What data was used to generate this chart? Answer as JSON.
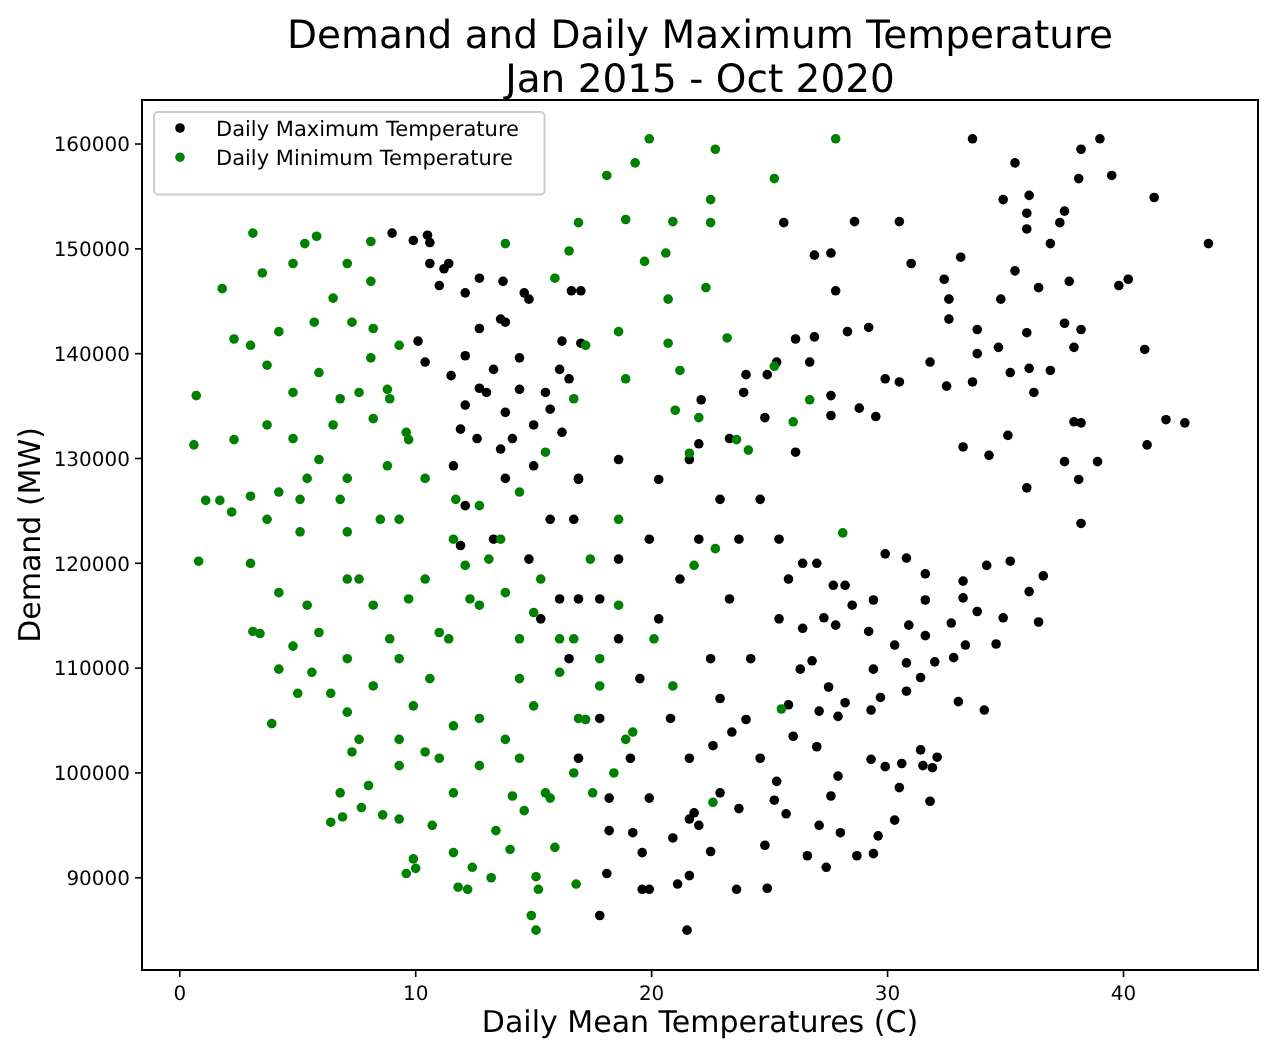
{
  "chart_data": {
    "type": "scatter",
    "title": "Demand and Daily Maximum Temperature\nJan 2015 - Oct 2020",
    "xlabel": "Daily Mean Temperatures (C)",
    "ylabel": "Demand (MW)",
    "xlim": [
      -1.6,
      45.7
    ],
    "ylim": [
      81200,
      164200
    ],
    "xticks": [
      0,
      10,
      20,
      30,
      40
    ],
    "yticks": [
      90000,
      100000,
      110000,
      120000,
      130000,
      140000,
      150000,
      160000
    ],
    "legend": "top left",
    "marker": "circle",
    "series": [
      {
        "name": "Daily Maximum Temperature",
        "color": "#000000",
        "x": [
          33.6,
          39.0,
          38.2,
          35.4,
          39.5,
          38.1,
          34.9,
          36.0,
          35.9,
          41.3,
          37.5,
          37.3,
          35.9,
          43.6,
          36.9,
          25.6,
          28.6,
          30.5,
          26.9,
          27.6,
          31.0,
          33.1,
          32.4,
          35.4,
          36.4,
          37.7,
          39.8,
          40.2,
          27.8,
          32.6,
          34.8,
          32.6,
          37.5,
          38.2,
          35.9,
          33.8,
          28.3,
          29.2,
          26.1,
          26.9,
          40.9,
          37.9,
          33.8,
          34.7,
          31.8,
          29.9,
          30.5,
          36.9,
          36.0,
          35.2,
          32.5,
          33.6,
          36.2,
          41.8,
          42.6,
          37.9,
          38.2,
          41.0,
          38.9,
          37.5,
          38.1,
          38.2,
          35.9,
          35.1,
          34.3,
          33.2,
          29.5,
          28.8,
          27.6,
          26.7,
          25.3,
          24.9,
          23.9,
          24.0,
          24.8,
          27.6,
          26.1,
          23.3,
          22.0,
          22.1,
          36.6,
          36.0,
          36.4,
          34.9,
          34.1,
          33.0,
          34.6,
          32.1,
          31.8,
          30.3,
          29.4,
          28.7,
          27.4,
          24.9,
          23.6,
          21.5,
          17.8,
          19.6,
          19.9,
          21.1,
          21.6,
          18.1,
          30.5,
          29.6,
          28.0,
          26.6,
          24.8,
          22.5,
          22.0,
          31.9,
          31.5,
          30.6,
          29.9,
          29.3,
          31.4,
          30.8,
          31.4,
          32.0,
          32.8,
          33.3,
          33.8,
          33.2,
          32.7,
          31.6,
          30.8,
          30.3,
          29.2,
          28.5,
          29.4,
          31.6,
          30.9,
          29.4,
          29.3,
          29.7,
          27.9,
          28.2,
          27.1,
          27.5,
          27.0,
          27.9,
          27.6,
          27.1,
          25.7,
          25.2,
          25.3,
          26.0,
          25.8,
          26.3,
          26.8,
          26.4,
          27.3,
          27.8,
          27.7,
          27.0,
          26.4,
          28.2,
          30.8,
          29.9,
          31.6,
          33.2,
          34.2,
          35.2,
          24.0,
          23.4,
          22.6,
          22.9,
          21.8,
          20.9,
          19.6,
          19.2,
          18.2,
          9.0,
          9.9,
          10.5,
          10.6,
          10.6,
          11.4,
          11.2,
          11.0,
          12.1,
          13.7,
          14.6,
          10.1,
          10.4,
          11.5,
          12.1,
          12.7,
          13.8,
          13.3,
          14.4,
          13.8,
          15.0,
          15.5,
          13.0,
          12.1,
          12.6,
          14.1,
          15.0,
          16.2,
          16.9,
          16.7,
          16.2,
          17.0,
          16.6,
          17.0,
          16.1,
          13.8,
          12.1,
          11.6,
          11.9,
          13.3,
          17.8,
          18.6,
          19.5,
          20.3,
          21.2,
          20.8,
          21.6,
          22.5,
          23.3,
          23.7,
          24.6,
          25.4,
          22.9,
          22.0,
          19.9,
          18.6,
          16.9,
          16.5,
          17.8,
          19.1,
          19.9,
          18.2,
          16.9,
          21.6,
          22.9,
          24.2,
          25.4,
          25.8,
          24.6,
          23.7,
          20.3,
          21.6,
          18.6,
          16.9,
          15.7,
          14.8,
          16.1,
          15.3,
          15.7,
          16.5,
          13.6,
          12.7,
          11.9,
          13.6,
          14.4,
          12.7,
          14.8
        ],
        "values": [
          160500,
          160500,
          159500,
          158200,
          157000,
          156700,
          154700,
          155100,
          153400,
          154900,
          153600,
          152500,
          151900,
          150500,
          150500,
          152500,
          152600,
          152600,
          149400,
          149600,
          148600,
          149200,
          147100,
          147900,
          146300,
          146900,
          146500,
          147100,
          146000,
          145200,
          145200,
          143300,
          142900,
          142300,
          142000,
          142300,
          142100,
          142500,
          141400,
          141600,
          140400,
          140600,
          140000,
          140600,
          139200,
          137600,
          137300,
          138400,
          138600,
          138200,
          136900,
          137300,
          136300,
          133700,
          133400,
          133500,
          133400,
          131300,
          129700,
          129700,
          128000,
          123800,
          127200,
          132200,
          130300,
          131100,
          134000,
          134800,
          136000,
          139200,
          139200,
          138000,
          136300,
          138000,
          133900,
          134100,
          130600,
          131900,
          131400,
          135600,
          118800,
          117300,
          114400,
          114800,
          106000,
          106800,
          112300,
          101500,
          97300,
          95500,
          92300,
          92100,
          91000,
          89000,
          88900,
          85000,
          86400,
          88900,
          88900,
          89400,
          90200,
          90400,
          98600,
          94000,
          94300,
          92100,
          93100,
          92500,
          95000,
          100500,
          100700,
          100900,
          100600,
          101300,
          102200,
          107800,
          109100,
          110600,
          111000,
          112200,
          115400,
          116700,
          114300,
          113100,
          110500,
          112200,
          113500,
          116000,
          116500,
          116500,
          114100,
          109900,
          106000,
          107200,
          105400,
          106700,
          105900,
          108200,
          102500,
          99700,
          97800,
          95000,
          96100,
          97400,
          99200,
          103500,
          106500,
          109900,
          110700,
          113800,
          114800,
          114100,
          117900,
          120000,
          120000,
          117900,
          120500,
          120900,
          119000,
          118300,
          119800,
          120200,
          105100,
          103900,
          102600,
          98100,
          96200,
          93800,
          92400,
          94300,
          94500,
          151500,
          150800,
          151300,
          150600,
          148600,
          148600,
          148100,
          146500,
          145800,
          146900,
          145800,
          141200,
          139200,
          137900,
          139800,
          142400,
          143000,
          138500,
          136600,
          134400,
          133200,
          136300,
          136300,
          135100,
          131900,
          131900,
          129300,
          132500,
          128100,
          124200,
          141200,
          141000,
          146000,
          146000,
          138500,
          128100,
          125500,
          129300,
          121700,
          122300,
          116600,
          112800,
          109000,
          114700,
          118500,
          105200,
          101400,
          110900,
          116600,
          122300,
          126100,
          122300,
          126100,
          122300,
          122300,
          120400,
          116600,
          110900,
          105200,
          101400,
          97600,
          97600,
          101400,
          95600,
          107100,
          110900,
          114700,
          118500,
          101400,
          96600,
          128000,
          129900,
          129900,
          128000,
          124200,
          120400,
          116600,
          114700,
          134700,
          137600,
          143300,
          147200,
          132800,
          130900,
          139600,
          136700,
          145200
        ]
      },
      {
        "name": "Daily Minimum Temperature",
        "color": "#008000",
        "x": [
          3.1,
          1.8,
          0.7,
          0.6,
          2.3,
          1.1,
          1.7,
          2.2,
          3.0,
          3.5,
          4.8,
          5.3,
          5.8,
          8.1,
          8.1,
          7.1,
          13.8,
          19.3,
          18.1,
          18.9,
          16.9,
          16.5,
          15.9,
          2.3,
          3.0,
          3.7,
          4.2,
          5.7,
          6.5,
          7.3,
          8.2,
          9.3,
          8.8,
          7.6,
          5.9,
          4.8,
          3.7,
          4.8,
          6.5,
          8.2,
          9.6,
          10.4,
          8.8,
          7.1,
          5.4,
          4.2,
          3.7,
          5.1,
          7.1,
          9.3,
          11.6,
          12.7,
          14.4,
          15.5,
          16.7,
          17.2,
          18.6,
          18.9,
          19.9,
          22.7,
          27.8,
          25.2,
          22.5,
          22.5,
          20.9,
          20.6,
          19.7,
          22.3,
          20.7,
          23.2,
          20.7,
          21.2,
          21.0,
          22.0,
          26.0,
          26.7,
          25.2,
          23.6,
          24.1,
          28.1,
          21.6,
          0.8,
          3.0,
          3.1,
          3.4,
          3.9,
          4.2,
          5.0,
          6.4,
          6.4,
          6.8,
          6.9,
          7.3,
          7.7,
          8.0,
          8.6,
          9.6,
          10.0,
          9.9,
          11.8,
          12.2,
          13.2,
          11.6,
          12.4,
          14.9,
          15.1,
          15.1,
          15.2,
          16.8,
          15.9,
          14.0,
          13.4,
          14.6,
          14.1,
          10.7,
          9.3,
          9.3,
          7.6,
          7.1,
          5.6,
          4.8,
          4.2,
          5.4,
          5.9,
          7.1,
          8.2,
          9.9,
          11.6,
          12.7,
          13.8,
          15.0,
          15.5,
          16.7,
          17.2,
          16.1,
          14.4,
          12.7,
          11.0,
          9.3,
          8.2,
          7.1,
          10.4,
          12.1,
          13.8,
          15.0,
          16.7,
          17.8,
          18.9,
          17.5,
          11.6,
          10.4,
          25.5,
          22.7,
          22.6,
          21.8,
          18.4,
          19.2,
          20.1,
          20.9,
          18.6,
          12.3,
          13.1,
          10.6,
          8.9,
          7.6,
          8.5,
          9.7,
          8.9,
          8.1,
          6.8,
          5.9,
          5.1,
          6.8,
          11.7,
          13.6,
          15.3,
          16.1,
          14.4,
          12.7,
          11.0,
          9.3,
          11.4,
          9.7,
          14.4,
          15.7,
          16.9,
          17.8,
          17.4,
          18.6
        ],
        "values": [
          151500,
          146200,
          136000,
          131300,
          131800,
          126000,
          126000,
          124900,
          126400,
          147700,
          148600,
          150500,
          151200,
          150700,
          146900,
          148600,
          150500,
          158200,
          157000,
          152800,
          152500,
          149800,
          147200,
          141400,
          140800,
          138900,
          142100,
          143000,
          145300,
          143000,
          142400,
          140800,
          136600,
          136300,
          138200,
          136300,
          133200,
          131900,
          133200,
          133800,
          132500,
          128100,
          129300,
          128100,
          128100,
          126800,
          124200,
          123000,
          123000,
          124200,
          122300,
          125500,
          126800,
          130600,
          135700,
          140800,
          142100,
          137600,
          160500,
          159500,
          160500,
          156700,
          154700,
          152500,
          152600,
          149600,
          148800,
          146300,
          145200,
          141500,
          141000,
          138400,
          134600,
          133900,
          133500,
          135600,
          138800,
          131800,
          130800,
          122900,
          130500,
          120200,
          120000,
          113500,
          113300,
          104700,
          109900,
          107600,
          107600,
          95300,
          98100,
          95800,
          102000,
          96700,
          98800,
          96000,
          90400,
          90900,
          91800,
          89100,
          88900,
          90000,
          92400,
          91000,
          86400,
          85000,
          90100,
          88900,
          89400,
          92900,
          92700,
          94500,
          96400,
          97800,
          95000,
          95600,
          100700,
          103200,
          105800,
          109600,
          112100,
          117200,
          116000,
          113400,
          110900,
          108300,
          106400,
          104500,
          100700,
          103200,
          106400,
          98100,
          100000,
          105100,
          109600,
          112800,
          116000,
          113400,
          110900,
          116000,
          118500,
          118500,
          119800,
          117200,
          115300,
          112800,
          108300,
          103200,
          98100,
          98100,
          102000,
          106100,
          121400,
          97200,
          119800,
          100000,
          103900,
          112800,
          108300,
          116000,
          116600,
          120400,
          109000,
          112800,
          118500,
          124200,
          131800,
          135700,
          139600,
          135700,
          129900,
          126100,
          126100,
          126100,
          122300,
          118500,
          112800,
          109000,
          105200,
          101400,
          103200,
          112800,
          116600,
          101400,
          97600,
          105200,
          110900,
          120400,
          124200
        ]
      }
    ]
  }
}
